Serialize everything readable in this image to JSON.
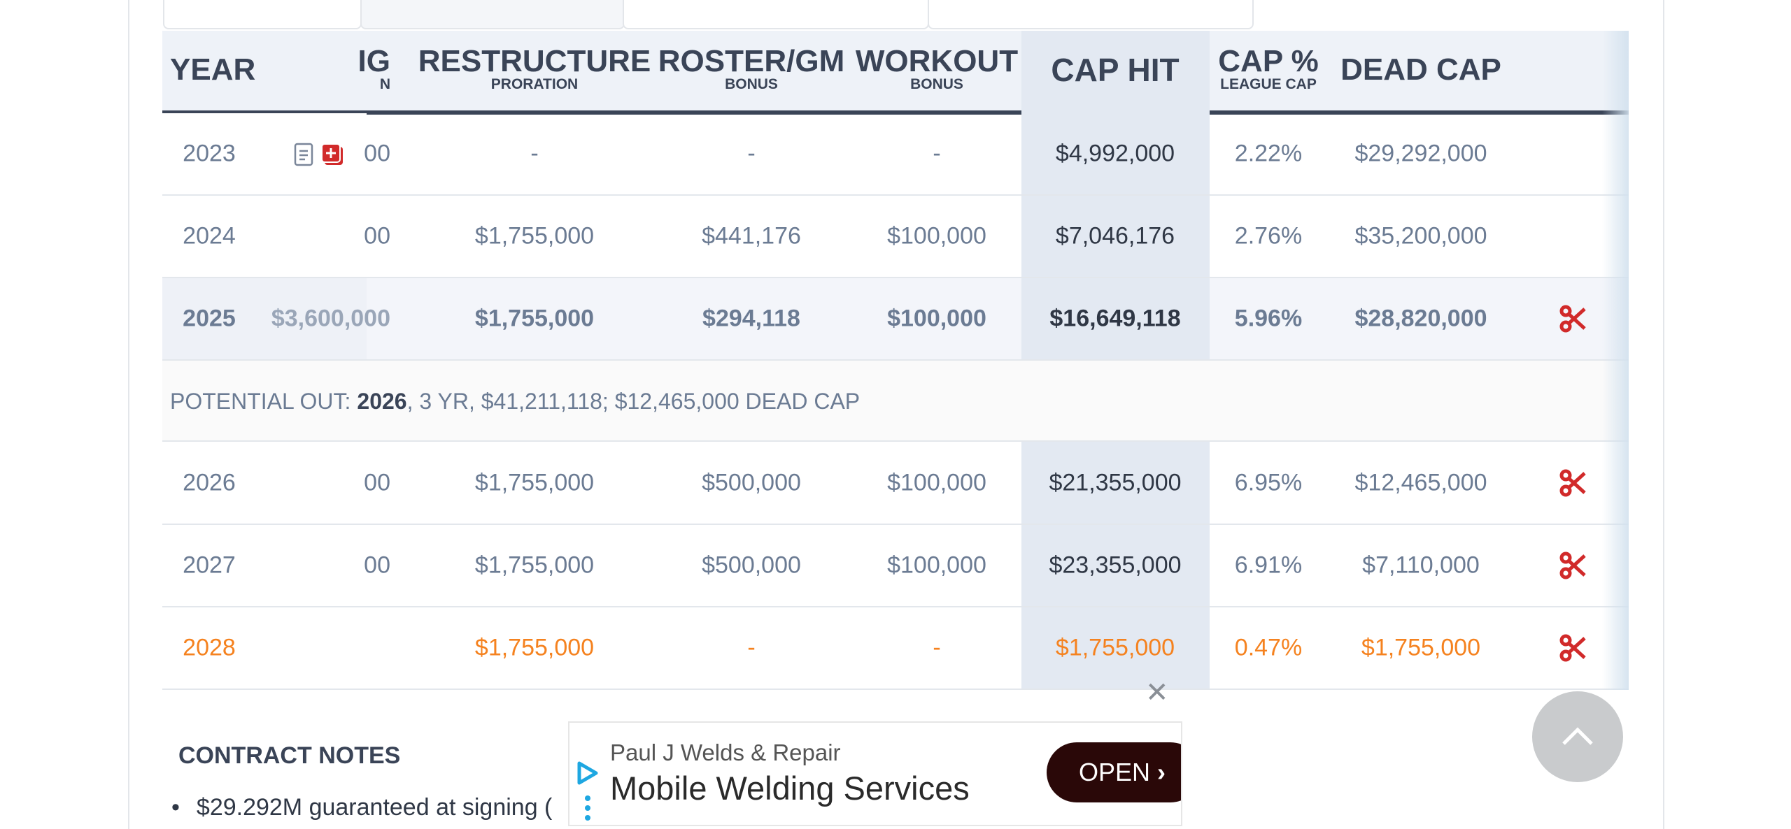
{
  "table": {
    "headers": [
      {
        "title": "YEAR"
      },
      {
        "title": "IG",
        "sub": "N"
      },
      {
        "title": "RESTRUCTURE",
        "sub": "PRORATION"
      },
      {
        "title": "ROSTER/GM",
        "sub": "BONUS"
      },
      {
        "title": "WORKOUT",
        "sub": "BONUS"
      },
      {
        "title": "CAP HIT"
      },
      {
        "title": "CAP %",
        "sub": "LEAGUE CAP"
      },
      {
        "title": "DEAD CAP"
      }
    ],
    "rows": [
      [
        "2023",
        "00",
        "-",
        "-",
        "-",
        "$4,992,000",
        "2.22%",
        "$29,292,000"
      ],
      [
        "2024",
        "00",
        "$1,755,000",
        "$441,176",
        "$100,000",
        "$7,046,176",
        "2.76%",
        "$35,200,000"
      ],
      [
        "2025",
        "$3,600,000",
        "$1,755,000",
        "$294,118",
        "$100,000",
        "$16,649,118",
        "5.96%",
        "$28,820,000"
      ],
      [
        "2026",
        "00",
        "$1,755,000",
        "$500,000",
        "$100,000",
        "$21,355,000",
        "6.95%",
        "$12,465,000"
      ],
      [
        "2027",
        "00",
        "$1,755,000",
        "$500,000",
        "$100,000",
        "$23,355,000",
        "6.91%",
        "$7,110,000"
      ],
      [
        "2028",
        "",
        "$1,755,000",
        "-",
        "-",
        "$1,755,000",
        "0.47%",
        "$1,755,000"
      ]
    ],
    "potential_out": {
      "prefix": "POTENTIAL OUT:",
      "year": "2026",
      "rest": ", 3 YR, $41,211,118; $12,465,000 DEAD CAP"
    }
  },
  "notes": {
    "title": "CONTRACT NOTES",
    "items": [
      "$29.292M guaranteed at signing ("
    ]
  },
  "ad": {
    "advertiser": "Paul J Welds & Repair",
    "headline": "Mobile Welding Services",
    "button": "OPEN"
  }
}
